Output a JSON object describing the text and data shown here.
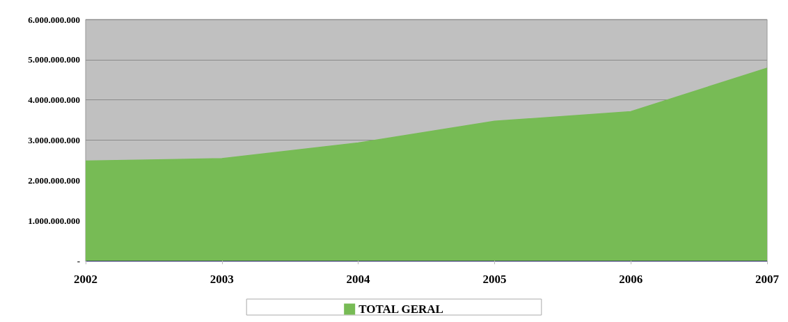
{
  "chart_data": {
    "type": "area",
    "categories": [
      "2002",
      "2003",
      "2004",
      "2005",
      "2006",
      "2007"
    ],
    "series": [
      {
        "name": "TOTAL GERAL",
        "color": "#77bb55",
        "values": [
          2480000000,
          2540000000,
          2930000000,
          3470000000,
          3710000000,
          4790000000
        ]
      }
    ],
    "ylim": [
      0,
      6000000000
    ],
    "yticks": [
      {
        "value": 0,
        "label": "-"
      },
      {
        "value": 1000000000,
        "label": "1.000.000.000"
      },
      {
        "value": 2000000000,
        "label": "2.000.000.000"
      },
      {
        "value": 3000000000,
        "label": "3.000.000.000"
      },
      {
        "value": 4000000000,
        "label": "4.000.000.000"
      },
      {
        "value": 5000000000,
        "label": "5.000.000.000"
      },
      {
        "value": 6000000000,
        "label": "6.000.000.000"
      }
    ],
    "grid": "y",
    "legend": "bottom"
  }
}
